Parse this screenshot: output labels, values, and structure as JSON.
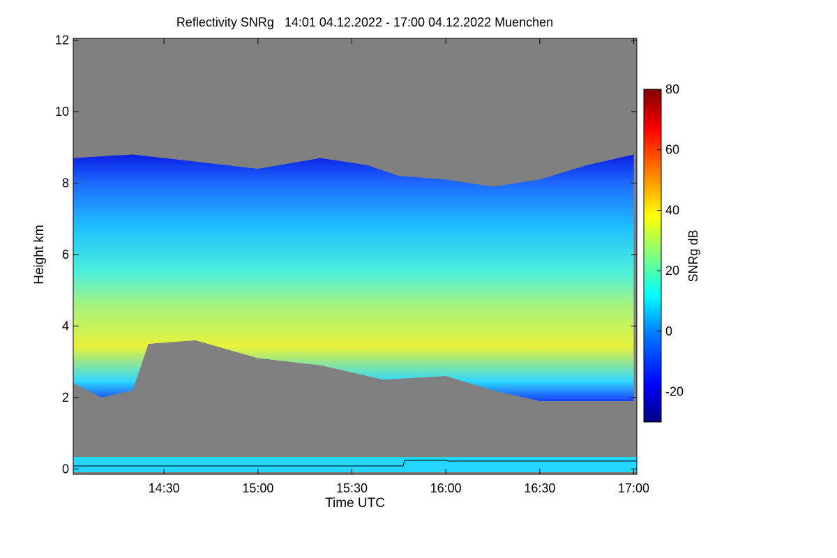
{
  "chart_data": {
    "type": "heatmap",
    "title": "Reflectivity SNRg   14:01 04.12.2022 - 17:00 04.12.2022 Muenchen",
    "xlabel": "Time UTC",
    "ylabel": "Height km",
    "x_ticks": [
      "14:30",
      "15:00",
      "15:30",
      "16:00",
      "16:30",
      "17:00"
    ],
    "x_tick_minutes": [
      870,
      900,
      930,
      960,
      990,
      1020
    ],
    "xlim_minutes": [
      841,
      1021
    ],
    "y_ticks": [
      0,
      2,
      4,
      6,
      8,
      10,
      12
    ],
    "ylim": [
      -0.15,
      12.05
    ],
    "colorbar": {
      "label": "SNRg dB",
      "ticks": [
        -20,
        0,
        20,
        40,
        60,
        80
      ],
      "range": [
        -30,
        80
      ]
    },
    "colors": {
      "background": "#808080",
      "colormap": [
        "#00007f",
        "#0000ff",
        "#007fff",
        "#00ffff",
        "#7fff7f",
        "#ffff00",
        "#ff7f00",
        "#ff0000",
        "#7f0000"
      ]
    },
    "echo_layer": {
      "description_units": "km vs minutes of day",
      "top_km": [
        [
          841,
          8.7
        ],
        [
          860,
          8.8
        ],
        [
          880,
          8.6
        ],
        [
          900,
          8.4
        ],
        [
          920,
          8.7
        ],
        [
          935,
          8.5
        ],
        [
          945,
          8.2
        ],
        [
          960,
          8.1
        ],
        [
          975,
          7.9
        ],
        [
          990,
          8.1
        ],
        [
          1005,
          8.5
        ],
        [
          1020,
          8.8
        ]
      ],
      "base_km": [
        [
          841,
          2.4
        ],
        [
          850,
          2.0
        ],
        [
          860,
          2.2
        ],
        [
          865,
          3.5
        ],
        [
          880,
          3.6
        ],
        [
          900,
          3.1
        ],
        [
          920,
          2.9
        ],
        [
          940,
          2.5
        ],
        [
          960,
          2.6
        ],
        [
          975,
          2.2
        ],
        [
          990,
          1.9
        ],
        [
          1005,
          1.9
        ],
        [
          1020,
          1.9
        ]
      ]
    }
  }
}
